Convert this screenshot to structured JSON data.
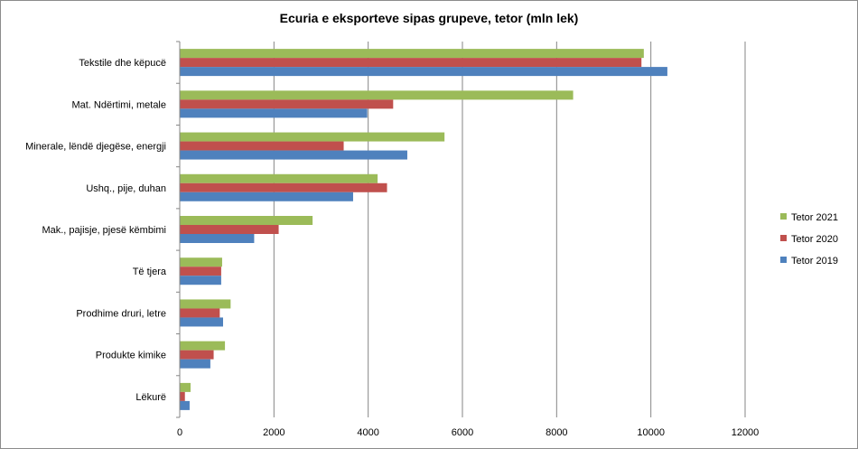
{
  "chart_data": {
    "type": "bar",
    "orientation": "horizontal",
    "title": "Ecuria e eksporteve sipas grupeve, tetor (mln lek)",
    "categories": [
      "Tekstile dhe këpucë",
      "Mat. Ndërtimi, metale",
      "Minerale, lëndë djegëse, energji",
      "Ushq., pije, duhan",
      "Mak., pajisje, pjesë këmbimi",
      "Të tjera",
      "Prodhime druri, letre",
      "Produkte kimike",
      "Lëkurë"
    ],
    "series": [
      {
        "name": "Tetor 2021",
        "color": "#9bbb59",
        "values": [
          9850,
          8350,
          5620,
          4200,
          2820,
          900,
          1080,
          960,
          230
        ]
      },
      {
        "name": "Tetor 2020",
        "color": "#c0504d",
        "values": [
          9800,
          4530,
          3480,
          4400,
          2100,
          880,
          850,
          720,
          110
        ]
      },
      {
        "name": "Tetor 2019",
        "color": "#4f81bd",
        "values": [
          10350,
          3980,
          4830,
          3680,
          1580,
          880,
          920,
          650,
          210
        ]
      }
    ],
    "xlim": [
      0,
      12000
    ],
    "xticks": [
      "0",
      "2000",
      "4000",
      "6000",
      "8000",
      "10000",
      "12000"
    ],
    "grid": "vertical",
    "legend_position": "right"
  }
}
